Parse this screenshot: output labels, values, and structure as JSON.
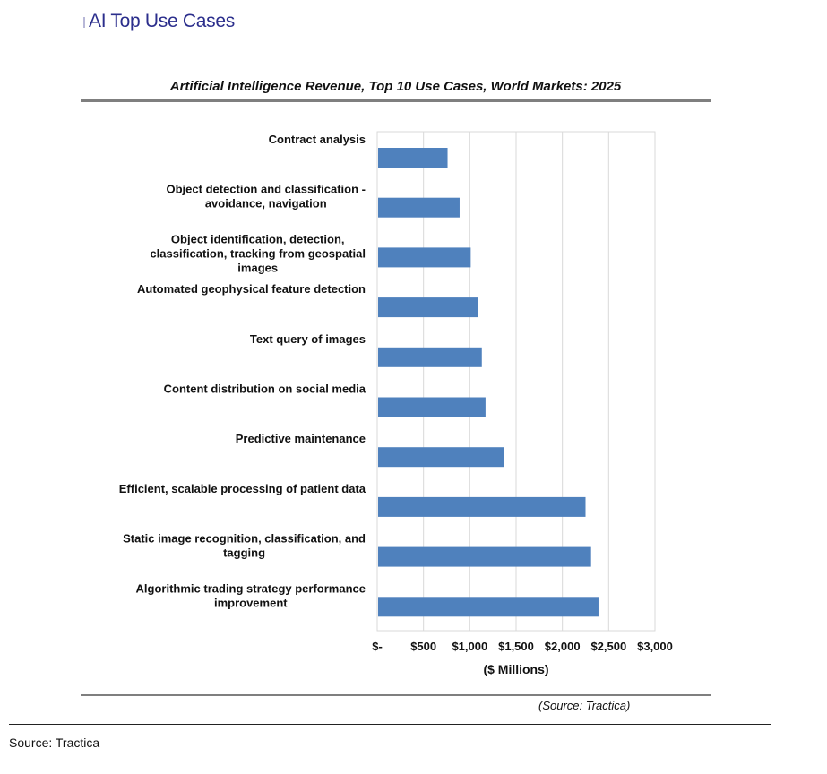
{
  "heading": "AI Top Use Cases",
  "chart_data": {
    "type": "bar",
    "orientation": "horizontal",
    "title": "Artificial Intelligence Revenue, Top 10 Use Cases, World Markets: 2025",
    "xlabel": "($ Millions)",
    "ylabel": "",
    "xlim": [
      0,
      3000
    ],
    "x_ticks": [
      0,
      500,
      1000,
      1500,
      2000,
      2500,
      3000
    ],
    "x_tick_labels": [
      "$-",
      "$500",
      "$1,000",
      "$1,500",
      "$2,000",
      "$2,500",
      "$3,000"
    ],
    "grid": true,
    "bar_color": "#4f81bd",
    "categories": [
      [
        "Contract analysis"
      ],
      [
        "Object detection and classification -",
        "avoidance, navigation"
      ],
      [
        "Object identification, detection,",
        "classification, tracking from geospatial",
        "images"
      ],
      [
        "Automated geophysical feature detection"
      ],
      [
        "Text query of images"
      ],
      [
        "Content distribution on social media"
      ],
      [
        "Predictive maintenance"
      ],
      [
        "Efficient, scalable processing of patient data"
      ],
      [
        "Static image recognition, classification, and",
        "tagging"
      ],
      [
        "Algorithmic trading strategy performance",
        "improvement"
      ]
    ],
    "values": [
      760,
      890,
      1010,
      1090,
      1130,
      1170,
      1370,
      2250,
      2310,
      2390
    ]
  },
  "chart_source": "(Source: Tractica)",
  "page_source": "Source: Tractica"
}
